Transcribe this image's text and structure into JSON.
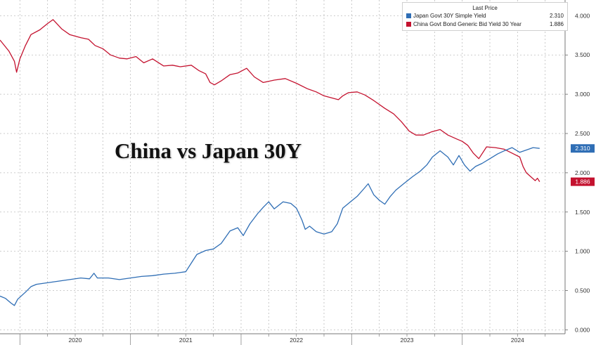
{
  "title": "China vs Japan 30Y",
  "legend_header": "Last Price",
  "chart_data": {
    "type": "line",
    "title": "China vs Japan 30Y",
    "xlabel": "",
    "ylabel": "",
    "x_ticks": [
      "2020",
      "2021",
      "2022",
      "2023",
      "2024"
    ],
    "y_ticks": [
      "0.000",
      "0.500",
      "1.000",
      "1.500",
      "2.000",
      "2.500",
      "3.000",
      "3.500",
      "4.000"
    ],
    "ylim": [
      -0.05,
      4.2
    ],
    "xlim": [
      2019.82,
      2024.93
    ],
    "grid": true,
    "legend_position": "top-right",
    "series": [
      {
        "name": "China Govt Bond Generic Bid Yield 30 Year",
        "last_value": "1.886",
        "color": "#c4122f",
        "points": [
          [
            2019.82,
            3.69
          ],
          [
            2019.9,
            3.55
          ],
          [
            2019.95,
            3.42
          ],
          [
            2019.97,
            3.28
          ],
          [
            2020.0,
            3.45
          ],
          [
            2020.05,
            3.62
          ],
          [
            2020.1,
            3.76
          ],
          [
            2020.18,
            3.82
          ],
          [
            2020.25,
            3.9
          ],
          [
            2020.3,
            3.95
          ],
          [
            2020.38,
            3.83
          ],
          [
            2020.45,
            3.76
          ],
          [
            2020.55,
            3.72
          ],
          [
            2020.62,
            3.7
          ],
          [
            2020.68,
            3.62
          ],
          [
            2020.75,
            3.58
          ],
          [
            2020.82,
            3.5
          ],
          [
            2020.9,
            3.46
          ],
          [
            2020.97,
            3.45
          ],
          [
            2021.05,
            3.48
          ],
          [
            2021.12,
            3.4
          ],
          [
            2021.2,
            3.45
          ],
          [
            2021.3,
            3.36
          ],
          [
            2021.38,
            3.37
          ],
          [
            2021.45,
            3.35
          ],
          [
            2021.55,
            3.37
          ],
          [
            2021.62,
            3.3
          ],
          [
            2021.68,
            3.26
          ],
          [
            2021.72,
            3.15
          ],
          [
            2021.76,
            3.12
          ],
          [
            2021.82,
            3.17
          ],
          [
            2021.9,
            3.25
          ],
          [
            2021.97,
            3.27
          ],
          [
            2022.05,
            3.33
          ],
          [
            2022.12,
            3.22
          ],
          [
            2022.2,
            3.15
          ],
          [
            2022.3,
            3.18
          ],
          [
            2022.4,
            3.2
          ],
          [
            2022.5,
            3.14
          ],
          [
            2022.6,
            3.07
          ],
          [
            2022.68,
            3.03
          ],
          [
            2022.75,
            2.98
          ],
          [
            2022.83,
            2.95
          ],
          [
            2022.88,
            2.93
          ],
          [
            2022.92,
            2.98
          ],
          [
            2022.97,
            3.02
          ],
          [
            2023.05,
            3.03
          ],
          [
            2023.12,
            2.99
          ],
          [
            2023.2,
            2.92
          ],
          [
            2023.3,
            2.82
          ],
          [
            2023.38,
            2.75
          ],
          [
            2023.45,
            2.65
          ],
          [
            2023.52,
            2.53
          ],
          [
            2023.58,
            2.48
          ],
          [
            2023.65,
            2.48
          ],
          [
            2023.72,
            2.52
          ],
          [
            2023.8,
            2.55
          ],
          [
            2023.87,
            2.48
          ],
          [
            2023.95,
            2.43
          ],
          [
            2024.0,
            2.4
          ],
          [
            2024.05,
            2.35
          ],
          [
            2024.1,
            2.25
          ],
          [
            2024.15,
            2.18
          ],
          [
            2024.22,
            2.33
          ],
          [
            2024.3,
            2.32
          ],
          [
            2024.38,
            2.3
          ],
          [
            2024.45,
            2.25
          ],
          [
            2024.52,
            2.2
          ],
          [
            2024.55,
            2.08
          ],
          [
            2024.58,
            2.0
          ],
          [
            2024.62,
            1.95
          ],
          [
            2024.66,
            1.9
          ],
          [
            2024.68,
            1.93
          ],
          [
            2024.7,
            1.886
          ]
        ]
      },
      {
        "name": "Japan Govt 30Y Simple Yield",
        "last_value": "2.310",
        "color": "#2f6eb5",
        "points": [
          [
            2019.82,
            0.43
          ],
          [
            2019.87,
            0.4
          ],
          [
            2019.92,
            0.34
          ],
          [
            2019.95,
            0.31
          ],
          [
            2019.98,
            0.39
          ],
          [
            2020.05,
            0.48
          ],
          [
            2020.1,
            0.55
          ],
          [
            2020.15,
            0.58
          ],
          [
            2020.25,
            0.6
          ],
          [
            2020.35,
            0.62
          ],
          [
            2020.45,
            0.64
          ],
          [
            2020.55,
            0.66
          ],
          [
            2020.63,
            0.65
          ],
          [
            2020.67,
            0.72
          ],
          [
            2020.7,
            0.66
          ],
          [
            2020.8,
            0.66
          ],
          [
            2020.9,
            0.64
          ],
          [
            2021.0,
            0.66
          ],
          [
            2021.1,
            0.68
          ],
          [
            2021.2,
            0.69
          ],
          [
            2021.3,
            0.71
          ],
          [
            2021.4,
            0.72
          ],
          [
            2021.5,
            0.74
          ],
          [
            2021.55,
            0.85
          ],
          [
            2021.6,
            0.96
          ],
          [
            2021.68,
            1.01
          ],
          [
            2021.75,
            1.03
          ],
          [
            2021.82,
            1.1
          ],
          [
            2021.9,
            1.26
          ],
          [
            2021.97,
            1.3
          ],
          [
            2022.02,
            1.2
          ],
          [
            2022.08,
            1.35
          ],
          [
            2022.15,
            1.48
          ],
          [
            2022.2,
            1.56
          ],
          [
            2022.25,
            1.63
          ],
          [
            2022.3,
            1.54
          ],
          [
            2022.38,
            1.63
          ],
          [
            2022.45,
            1.61
          ],
          [
            2022.5,
            1.55
          ],
          [
            2022.55,
            1.4
          ],
          [
            2022.58,
            1.28
          ],
          [
            2022.62,
            1.32
          ],
          [
            2022.68,
            1.25
          ],
          [
            2022.75,
            1.22
          ],
          [
            2022.82,
            1.25
          ],
          [
            2022.87,
            1.35
          ],
          [
            2022.92,
            1.55
          ],
          [
            2022.98,
            1.62
          ],
          [
            2023.05,
            1.7
          ],
          [
            2023.1,
            1.78
          ],
          [
            2023.15,
            1.86
          ],
          [
            2023.2,
            1.72
          ],
          [
            2023.25,
            1.65
          ],
          [
            2023.3,
            1.6
          ],
          [
            2023.35,
            1.7
          ],
          [
            2023.4,
            1.78
          ],
          [
            2023.47,
            1.86
          ],
          [
            2023.55,
            1.95
          ],
          [
            2023.62,
            2.02
          ],
          [
            2023.68,
            2.1
          ],
          [
            2023.73,
            2.2
          ],
          [
            2023.8,
            2.28
          ],
          [
            2023.87,
            2.2
          ],
          [
            2023.92,
            2.1
          ],
          [
            2023.97,
            2.22
          ],
          [
            2024.02,
            2.1
          ],
          [
            2024.07,
            2.02
          ],
          [
            2024.12,
            2.08
          ],
          [
            2024.18,
            2.12
          ],
          [
            2024.25,
            2.18
          ],
          [
            2024.32,
            2.24
          ],
          [
            2024.38,
            2.28
          ],
          [
            2024.45,
            2.32
          ],
          [
            2024.52,
            2.26
          ],
          [
            2024.58,
            2.29
          ],
          [
            2024.64,
            2.32
          ],
          [
            2024.7,
            2.31
          ]
        ]
      }
    ]
  }
}
